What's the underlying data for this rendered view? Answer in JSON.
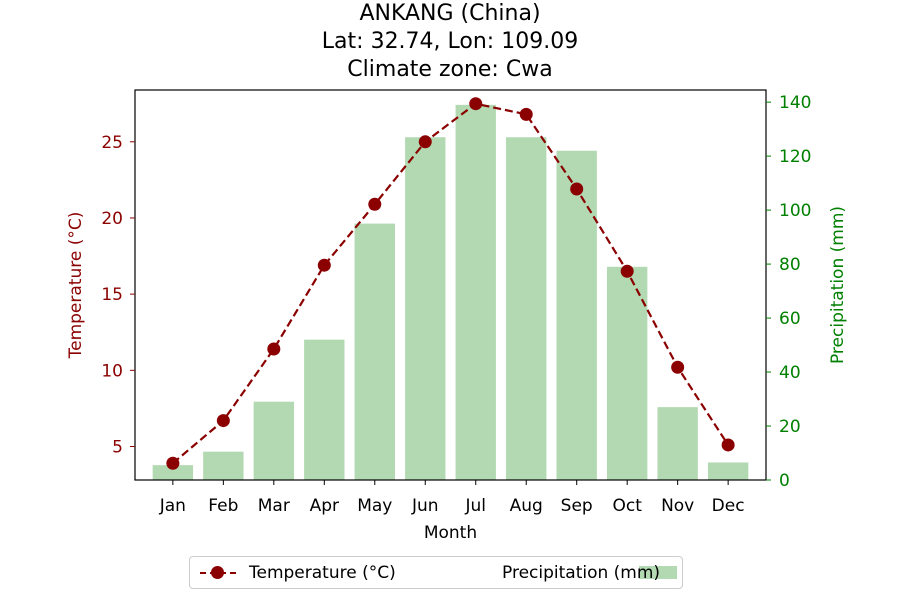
{
  "title": {
    "line1": "ANKANG (China)",
    "line2": "Lat: 32.74, Lon: 109.09",
    "line3": "Climate zone: Cwa"
  },
  "colors": {
    "temperature": "#8b0000",
    "precipitation_bar": "rgba(0,128,0,0.3)",
    "precipitation_axis": "#008000"
  },
  "legend": {
    "temperature_label": "Temperature (°C)",
    "precipitation_label": "Precipitation (mm)"
  },
  "chart_data": {
    "type": "bar+line",
    "categories": [
      "Jan",
      "Feb",
      "Mar",
      "Apr",
      "May",
      "Jun",
      "Jul",
      "Aug",
      "Sep",
      "Oct",
      "Nov",
      "Dec"
    ],
    "xlabel": "Month",
    "series": [
      {
        "name": "Temperature (°C)",
        "type": "line",
        "axis": "left",
        "values": [
          3.9,
          6.7,
          11.4,
          16.9,
          20.9,
          25.0,
          27.5,
          26.8,
          21.9,
          16.5,
          10.2,
          5.1
        ]
      },
      {
        "name": "Precipitation (mm)",
        "type": "bar",
        "axis": "right",
        "values": [
          5.5,
          10.5,
          29,
          52,
          95,
          127,
          139,
          127,
          122,
          79,
          27,
          6.5
        ]
      }
    ],
    "left_axis": {
      "label": "Temperature (°C)",
      "ylim": [
        2.8,
        28.4
      ],
      "ticks": [
        5,
        10,
        15,
        20,
        25
      ]
    },
    "right_axis": {
      "label": "Precipitation (mm)",
      "ylim": [
        0,
        144.5
      ],
      "ticks": [
        0,
        20,
        40,
        60,
        80,
        100,
        120,
        140
      ]
    },
    "legend_position": "bottom-center",
    "grid": false
  }
}
